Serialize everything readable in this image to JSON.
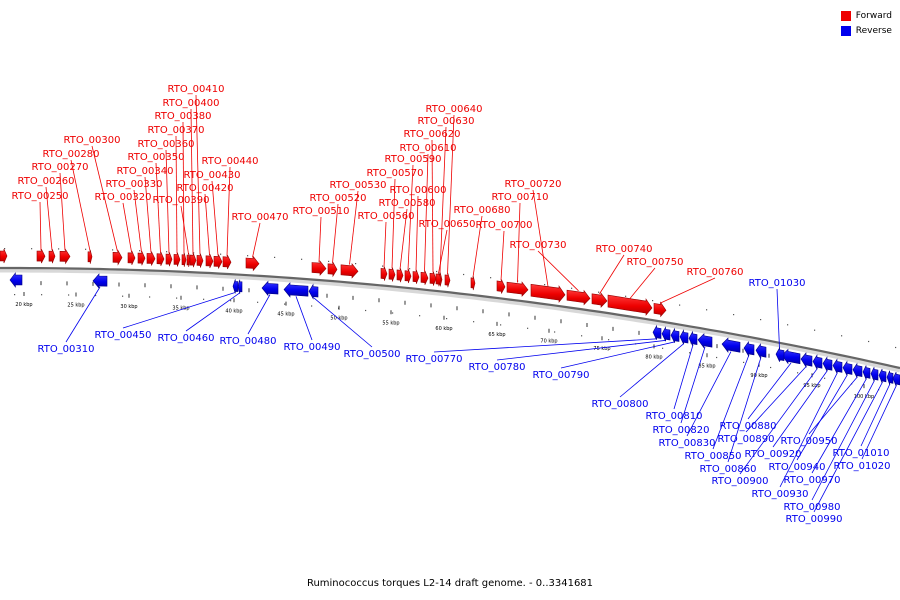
{
  "caption": "Ruminococcus torques L2-14 draft genome. - 0..3341681",
  "legend": {
    "forward": {
      "label": "Forward",
      "color": "#ee0000"
    },
    "reverse": {
      "label": "Reverse",
      "color": "#0000ee"
    }
  },
  "axis": {
    "ticks_kbp": [
      20,
      25,
      30,
      35,
      40,
      45,
      50,
      55,
      60,
      65,
      70,
      75,
      80,
      85,
      90,
      95,
      100
    ],
    "tick_suffix": " kbp"
  },
  "forward_genes": [
    {
      "id": "RTO_00250",
      "label": "RTO_00250"
    },
    {
      "id": "RTO_00260",
      "label": "RTO_00260"
    },
    {
      "id": "RTO_00270",
      "label": "RTO_00270"
    },
    {
      "id": "RTO_00280",
      "label": "RTO_00280"
    },
    {
      "id": "RTO_00300",
      "label": "RTO_00300"
    },
    {
      "id": "RTO_00320",
      "label": "RTO_00320"
    },
    {
      "id": "RTO_00330",
      "label": "RTO_00330"
    },
    {
      "id": "RTO_00340",
      "label": "RTO_00340"
    },
    {
      "id": "RTO_00350",
      "label": "RTO_00350"
    },
    {
      "id": "RTO_00360",
      "label": "RTO_00360"
    },
    {
      "id": "RTO_00370",
      "label": "RTO_00370"
    },
    {
      "id": "RTO_00380",
      "label": "RTO_00380"
    },
    {
      "id": "RTO_00390",
      "label": "RTO_00390"
    },
    {
      "id": "RTO_00400",
      "label": "RTO_00400"
    },
    {
      "id": "RTO_00410",
      "label": "RTO_00410"
    },
    {
      "id": "RTO_00420",
      "label": "RTO_00420"
    },
    {
      "id": "RTO_00430",
      "label": "RTO_00430"
    },
    {
      "id": "RTO_00440",
      "label": "RTO_00440"
    },
    {
      "id": "RTO_00470",
      "label": "RTO_00470"
    },
    {
      "id": "RTO_00510",
      "label": "RTO_00510"
    },
    {
      "id": "RTO_00520",
      "label": "RTO_00520"
    },
    {
      "id": "RTO_00530",
      "label": "RTO_00530"
    },
    {
      "id": "RTO_00560",
      "label": "RTO_00560"
    },
    {
      "id": "RTO_00570",
      "label": "RTO_00570"
    },
    {
      "id": "RTO_00580",
      "label": "RTO_00580"
    },
    {
      "id": "RTO_00590",
      "label": "RTO_00590"
    },
    {
      "id": "RTO_00600",
      "label": "RTO_00600"
    },
    {
      "id": "RTO_00610",
      "label": "RTO_00610"
    },
    {
      "id": "RTO_00620",
      "label": "RTO_00620"
    },
    {
      "id": "RTO_00630",
      "label": "RTO_00630"
    },
    {
      "id": "RTO_00640",
      "label": "RTO_00640"
    },
    {
      "id": "RTO_00650",
      "label": "RTO_00650"
    },
    {
      "id": "RTO_00680",
      "label": "RTO_00680"
    },
    {
      "id": "RTO_00700",
      "label": "RTO_00700"
    },
    {
      "id": "RTO_00710",
      "label": "RTO_00710"
    },
    {
      "id": "RTO_00720",
      "label": "RTO_00720"
    },
    {
      "id": "RTO_00730",
      "label": "RTO_00730"
    },
    {
      "id": "RTO_00740",
      "label": "RTO_00740"
    },
    {
      "id": "RTO_00750",
      "label": "RTO_00750"
    },
    {
      "id": "RTO_00760",
      "label": "RTO_00760"
    }
  ],
  "reverse_genes": [
    {
      "id": "RTO_00310",
      "label": "RTO_00310"
    },
    {
      "id": "RTO_00450",
      "label": "RTO_00450"
    },
    {
      "id": "RTO_00460",
      "label": "RTO_00460"
    },
    {
      "id": "RTO_00480",
      "label": "RTO_00480"
    },
    {
      "id": "RTO_00490",
      "label": "RTO_00490"
    },
    {
      "id": "RTO_00500",
      "label": "RTO_00500"
    },
    {
      "id": "RTO_00770",
      "label": "RTO_00770"
    },
    {
      "id": "RTO_00780",
      "label": "RTO_00780"
    },
    {
      "id": "RTO_00790",
      "label": "RTO_00790"
    },
    {
      "id": "RTO_00800",
      "label": "RTO_00800"
    },
    {
      "id": "RTO_00810",
      "label": "RTO_00810"
    },
    {
      "id": "RTO_00820",
      "label": "RTO_00820"
    },
    {
      "id": "RTO_00830",
      "label": "RTO_00830"
    },
    {
      "id": "RTO_00850",
      "label": "RTO_00850"
    },
    {
      "id": "RTO_00860",
      "label": "RTO_00860"
    },
    {
      "id": "RTO_00880",
      "label": "RTO_00880"
    },
    {
      "id": "RTO_00890",
      "label": "RTO_00890"
    },
    {
      "id": "RTO_00900",
      "label": "RTO_00900"
    },
    {
      "id": "RTO_00920",
      "label": "RTO_00920"
    },
    {
      "id": "RTO_00930",
      "label": "RTO_00930"
    },
    {
      "id": "RTO_00940",
      "label": "RTO_00940"
    },
    {
      "id": "RTO_00950",
      "label": "RTO_00950"
    },
    {
      "id": "RTO_00970",
      "label": "RTO_00970"
    },
    {
      "id": "RTO_00980",
      "label": "RTO_00980"
    },
    {
      "id": "RTO_00990",
      "label": "RTO_00990"
    },
    {
      "id": "RTO_01010",
      "label": "RTO_01010"
    },
    {
      "id": "RTO_01020",
      "label": "RTO_01020"
    },
    {
      "id": "RTO_01030",
      "label": "RTO_01030"
    }
  ]
}
